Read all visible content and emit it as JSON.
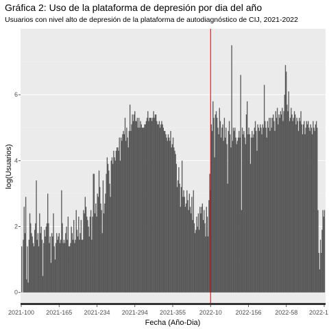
{
  "chart_data": {
    "type": "bar",
    "title": "Gráfica 2: Uso de la plataforma de depresión por dia del año",
    "subtitle": "Usuarios con nivel alto de depresión de la plataforma de autodiagnóstico de CIJ, 2021-2022",
    "xlabel": "Fecha (Año-Dia)",
    "ylabel": "log(Usuarios)",
    "ylim": [
      -0.38,
      8.0
    ],
    "yticks": [
      0,
      2,
      4,
      6
    ],
    "xtick_labels": [
      "2021-100",
      "2021-165",
      "2021-234",
      "2021-294",
      "2021-355",
      "2022-10",
      "2022-156",
      "2022-58",
      "2022-1"
    ],
    "vline": {
      "label_index": 5,
      "color": "#cc0000"
    },
    "bar_color": "#595959",
    "panel_color": "#ebebeb",
    "grid": true,
    "series": [
      {
        "values": [
          1.4,
          0.0,
          1.6,
          2.6,
          1.8,
          2.9,
          0.4,
          1.4,
          0.3,
          1.6,
          2.4,
          2.1,
          1.8,
          1.7,
          1.5,
          1.4,
          1.9,
          2.1,
          3.4,
          1.6,
          1.8,
          1.4,
          2.4,
          1.8,
          2.0,
          1.6,
          0.5,
          1.5,
          1.9,
          1.7,
          2.0,
          2.1,
          3.0,
          2.1,
          1.5,
          1.7,
          0.9,
          1.8,
          1.7,
          2.4,
          1.4,
          1.0,
          1.5,
          1.8,
          1.6,
          1.7,
          1.8,
          1.5,
          1.6,
          3.1,
          2.1,
          1.5,
          1.6,
          1.5,
          1.8,
          2.0,
          1.6,
          2.3,
          1.4,
          1.4,
          1.5,
          2.0,
          1.8,
          1.6,
          2.2,
          1.5,
          1.6,
          2.5,
          1.9,
          1.7,
          2.3,
          1.6,
          1.8,
          2.2,
          1.6,
          1.6,
          2.5,
          2.4,
          2.9,
          2.6,
          2.3,
          2.2,
          2.0,
          1.7,
          2.3,
          2.5,
          1.6,
          2.3,
          3.6,
          3.6,
          2.4,
          2.7,
          2.3,
          3.0,
          2.9,
          3.7,
          3.2,
          2.7,
          2.5,
          1.8,
          3.4,
          2.4,
          2.7,
          3.0,
          3.6,
          4.1,
          3.9,
          3.7,
          3.3,
          2.9,
          4.0,
          4.1,
          3.9,
          4.3,
          4.1,
          4.0,
          4.3,
          4.4,
          4.4,
          4.3,
          4.7,
          4.0,
          4.7,
          4.6,
          4.8,
          4.9,
          4.8,
          5.3,
          4.6,
          5.0,
          4.7,
          4.4,
          4.9,
          5.7,
          4.9,
          5.1,
          5.4,
          5.2,
          5.4,
          5.5,
          5.2,
          5.2,
          5.3,
          5.0,
          5.3,
          5.0,
          5.2,
          5.1,
          5.0,
          5.0,
          5.0,
          5.1,
          5.1,
          5.2,
          5.3,
          5.5,
          5.2,
          5.3,
          5.3,
          5.3,
          5.2,
          5.3,
          5.5,
          5.3,
          5.4,
          5.4,
          5.2,
          5.1,
          5.1,
          5.2,
          5.0,
          5.1,
          5.2,
          5.1,
          5.0,
          4.9,
          4.9,
          4.8,
          4.7,
          4.6,
          4.8,
          4.7,
          4.6,
          4.9,
          4.4,
          4.5,
          4.7,
          4.4,
          4.3,
          4.2,
          3.9,
          3.2,
          3.4,
          3.8,
          3.3,
          2.6,
          3.2,
          4.0,
          2.9,
          3.1,
          2.9,
          2.6,
          2.7,
          3.1,
          2.8,
          2.5,
          3.0,
          2.6,
          2.4,
          2.9,
          2.2,
          3.1,
          2.1,
          1.8,
          1.9,
          2.3,
          2.0,
          2.4,
          1.9,
          2.6,
          2.4,
          2.6,
          2.7,
          2.2,
          2.5,
          2.1,
          1.7,
          2.6,
          2.3,
          1.7,
          2.8,
          3.6,
          3.1,
          5.1,
          4.9,
          5.8,
          5.3,
          4.1,
          5.4,
          5.5,
          5.3,
          5.0,
          4.8,
          5.6,
          5.2,
          4.7,
          5.0,
          5.1,
          4.6,
          5.3,
          4.7,
          5.0,
          4.5,
          3.3,
          4.9,
          5.2,
          4.8,
          4.4,
          7.5,
          4.6,
          5.0,
          4.9,
          5.0,
          4.7,
          4.5,
          4.6,
          4.7,
          4.9,
          4.7,
          6.6,
          2.5,
          5.0,
          4.8,
          4.9,
          4.7,
          4.5,
          5.4,
          5.8,
          4.8,
          5.0,
          4.8,
          3.9,
          4.7,
          4.9,
          4.7,
          4.8,
          5.0,
          5.2,
          4.9,
          4.3,
          5.1,
          5.0,
          4.9,
          5.1,
          5.0,
          4.8,
          5.1,
          5.0,
          6.3,
          5.2,
          5.0,
          4.7,
          5.2,
          5.0,
          5.3,
          4.9,
          5.3,
          5.0,
          5.3,
          5.4,
          5.2,
          4.9,
          5.5,
          5.3,
          5.6,
          5.1,
          5.4,
          5.3,
          5.5,
          5.4,
          5.6,
          5.2,
          5.5,
          6.0,
          6.9,
          6.7,
          5.7,
          5.5,
          6.1,
          5.2,
          5.3,
          5.6,
          5.4,
          5.2,
          5.3,
          5.5,
          5.4,
          5.1,
          5.3,
          5.2,
          4.9,
          5.3,
          5.2,
          5.5,
          5.1,
          4.8,
          5.1,
          5.2,
          4.8,
          5.0,
          5.2,
          5.1,
          5.2,
          5.0,
          4.9,
          5.1,
          5.0,
          4.8,
          5.2,
          5.0,
          4.9,
          5.1,
          5.2,
          5.0,
          2.5,
          1.2,
          0.7,
          1.6,
          1.2,
          1.9,
          2.5,
          2.3,
          2.5
        ]
      }
    ]
  }
}
